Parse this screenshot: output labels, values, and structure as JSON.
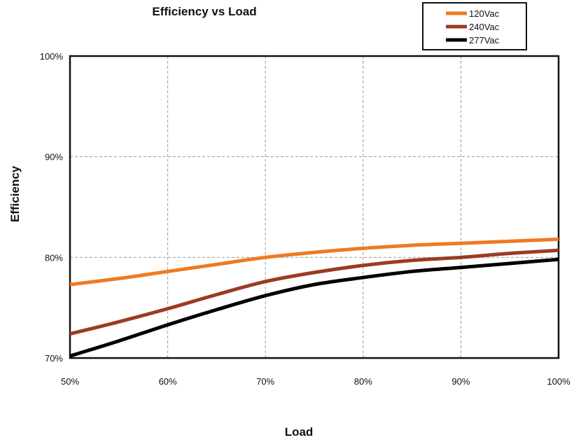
{
  "chart_data": {
    "type": "line",
    "title": "Efficiency vs Load",
    "xlabel": "Load",
    "ylabel": "Efficiency",
    "xlim": [
      50,
      100
    ],
    "ylim": [
      70,
      100
    ],
    "x_ticks": [
      "50%",
      "60%",
      "70%",
      "80%",
      "90%",
      "100%"
    ],
    "y_ticks": [
      "70%",
      "80%",
      "90%",
      "100%"
    ],
    "x_tick_values": [
      50,
      60,
      70,
      80,
      90,
      100
    ],
    "y_tick_values": [
      70,
      80,
      90,
      100
    ],
    "grid": true,
    "legend_position": "top-right",
    "x": [
      50,
      55,
      60,
      65,
      70,
      75,
      80,
      85,
      90,
      95,
      100
    ],
    "series": [
      {
        "name": "120Vac",
        "color": "#ef7a22",
        "values": [
          77.3,
          77.9,
          78.6,
          79.3,
          80.0,
          80.5,
          80.9,
          81.2,
          81.4,
          81.6,
          81.8
        ]
      },
      {
        "name": "240Vac",
        "color": "#9b3b23",
        "values": [
          72.4,
          73.6,
          74.9,
          76.3,
          77.6,
          78.5,
          79.2,
          79.7,
          80.0,
          80.4,
          80.7
        ]
      },
      {
        "name": "277Vac",
        "color": "#000000",
        "values": [
          70.2,
          71.7,
          73.3,
          74.8,
          76.2,
          77.3,
          78.0,
          78.6,
          79.0,
          79.4,
          79.8
        ]
      }
    ]
  }
}
